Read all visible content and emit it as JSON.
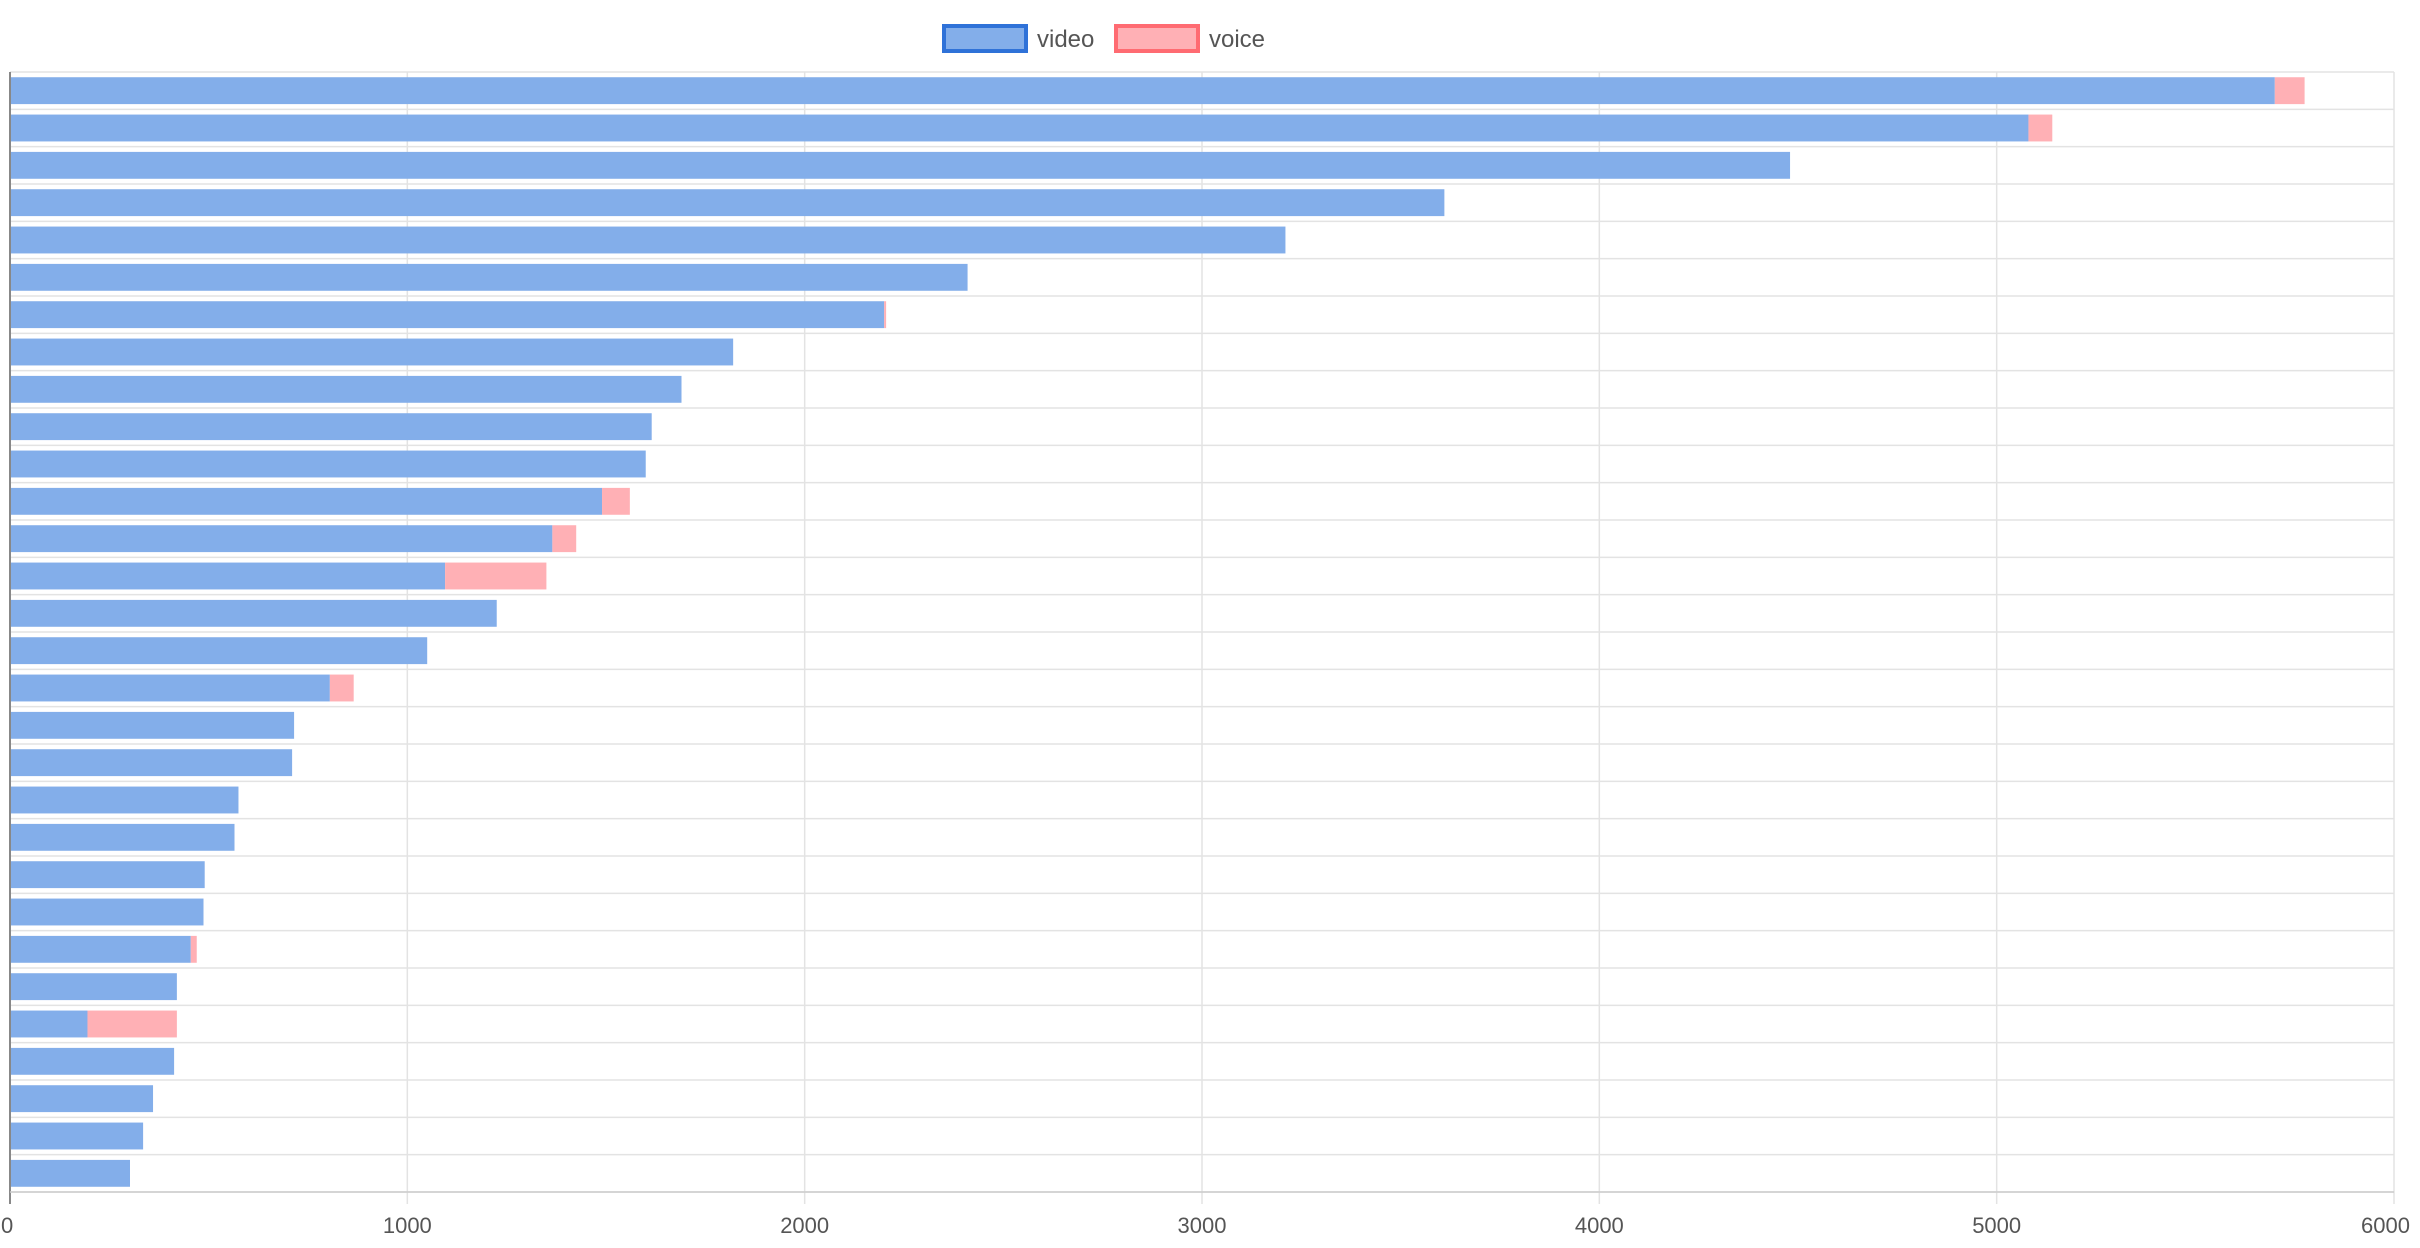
{
  "chart_data": {
    "type": "bar",
    "orientation": "horizontal",
    "stacked": true,
    "legend_position": "top",
    "grid": true,
    "xlim": [
      0,
      6000
    ],
    "xticks": [
      "0",
      "1000",
      "2000",
      "3000",
      "4000",
      "5000",
      "6000"
    ],
    "series": [
      {
        "name": "video",
        "fill": "#83aeea",
        "border": "#2f72d8",
        "values": [
          5700,
          5080,
          4480,
          3610,
          3210,
          2410,
          2200,
          1820,
          1690,
          1615,
          1600,
          1490,
          1365,
          1095,
          1225,
          1050,
          805,
          715,
          710,
          575,
          565,
          490,
          487,
          455,
          420,
          195,
          413,
          360,
          335,
          302
        ]
      },
      {
        "name": "voice",
        "fill": "#ffb0b5",
        "border": "#ff6b72",
        "values": [
          75,
          60,
          0,
          0,
          0,
          0,
          5,
          0,
          0,
          0,
          0,
          70,
          60,
          255,
          0,
          0,
          60,
          0,
          0,
          0,
          0,
          0,
          0,
          15,
          0,
          225,
          0,
          0,
          0,
          0
        ]
      }
    ]
  }
}
